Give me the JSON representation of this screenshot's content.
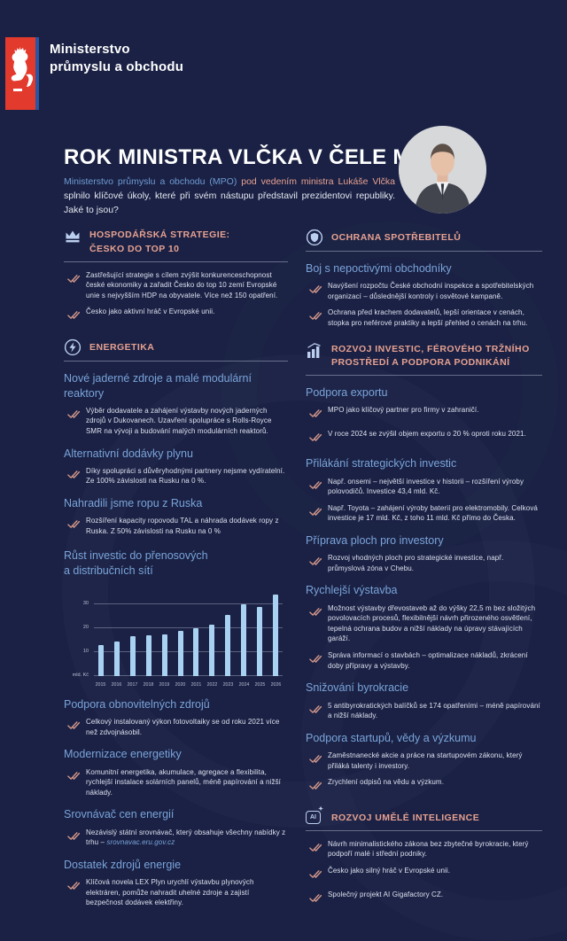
{
  "page": {
    "background": "#1a2144",
    "accent_red": "#e23a2d",
    "accent_blue_stripe": "#2b55a0",
    "accent_salmon": "#e7a191",
    "accent_light_blue": "#7aa4da",
    "bar_color": "#a9d2f2"
  },
  "brand": {
    "line1": "Ministerstvo",
    "line2": "průmyslu a obchodu",
    "emblem_icon": "czech-lion-icon"
  },
  "header": {
    "title": "ROK MINISTRA VLČKA V ČELE MPO",
    "intro_part1": "Ministerstvo průmyslu a obchodu (MPO)",
    "intro_part2": "pod vedením ministra Lukáše Vlčka",
    "intro_part3": "splnilo klíčové úkoly, které při svém nástupu představil prezidentovi republiky. Jaké to jsou?",
    "photo_icon": "minister-portrait"
  },
  "left": {
    "strategy": {
      "icon": "crown-icon",
      "title_line1": "HOSPODÁŘSKÁ STRATEGIE:",
      "title_line2": "ČESKO DO TOP 10",
      "bullets": [
        "Zastřešující strategie s cílem zvýšit konkurenceschopnost české ekonomiky a zařadit Česko do top 10 zemí Evropské unie s nejvyšším HDP na obyvatele. Více než 150 opatření.",
        "Česko jako aktivní hráč v Evropské unii."
      ]
    },
    "energy": {
      "icon": "energy-icon",
      "title": "ENERGETIKA",
      "subsections": [
        {
          "heading": "Nové jaderné zdroje a malé modulární reaktory",
          "bullets": [
            "Výběr dodavatele a zahájení výstavby nových jaderných zdrojů v Dukovanech. Uzavření spolupráce s Rolls-Royce SMR na vývoji a budování malých modulárních reaktorů."
          ]
        },
        {
          "heading": "Alternativní dodávky plynu",
          "bullets": [
            "Díky spolupráci s důvěryhodnými partnery nejsme vydíratelní. Ze 100% závislosti na Rusku na 0 %."
          ]
        },
        {
          "heading": "Nahradili jsme ropu z Ruska",
          "bullets": [
            "Rozšíření kapacity ropovodu TAL a náhrada dodávek ropy z Ruska. Z 50% závislosti na Rusku na 0 %"
          ]
        },
        {
          "heading_line1": "Růst investic do přenosových",
          "heading_line2": "a distribučních sítí"
        },
        {
          "heading": "Podpora obnovitelných zdrojů",
          "bullets": [
            "Celkový instalovaný výkon fotovoltaiky se od roku 2021 více než zdvojnásobil."
          ]
        },
        {
          "heading": "Modernizace energetiky",
          "bullets": [
            "Komunitní energetika, akumulace, agregace a flexibilita, rychlejší instalace solárních panelů, méně papírování a nižší náklady."
          ]
        },
        {
          "heading": "Srovnávač cen energií",
          "bullets": [
            "Nezávislý státní srovnávač, který obsahuje všechny nabídky z trhu – "
          ],
          "link": "srovnavac.eru.gov.cz"
        },
        {
          "heading": "Dostatek zdrojů energie",
          "bullets": [
            "Klíčová novela LEX Plyn urychlí výstavbu plynových elektráren, pomůže nahradit uhelné zdroje a zajistí bezpečnost dodávek elektřiny."
          ]
        }
      ]
    }
  },
  "right": {
    "consumer": {
      "icon": "shield-icon",
      "title": "OCHRANA SPOTŘEBITELŮ",
      "subsections": [
        {
          "heading": "Boj s nepoctivými obchodníky",
          "bullets": [
            "Navýšení rozpočtu České obchodní inspekce a spotřebitelských organizací – důslednější kontroly i osvětové kampaně.",
            "Ochrana před krachem dodavatelů, lepší orientace v cenách, stopka pro neférové praktiky a lepší přehled o cenách na trhu."
          ]
        }
      ]
    },
    "invest": {
      "icon": "bar-chart-icon",
      "title_line1": "ROZVOJ INVESTIC, FÉROVÉHO TRŽNÍHO",
      "title_line2": "PROSTŘEDÍ A PODPORA PODNIKÁNÍ",
      "subsections": [
        {
          "heading": "Podpora exportu",
          "bullets": [
            "MPO jako klíčový partner pro firmy v zahraničí.",
            "V roce 2024 se zvýšil objem exportu o 20 % oproti roku 2021."
          ]
        },
        {
          "heading": "Přilákání strategických investic",
          "bullets": [
            "Např. onsemi – největší investice v historii – rozšíření výroby polovodičů. Investice 43,4 mld. Kč.",
            "Např. Toyota – zahájení výroby baterií pro elektromobily. Celková investice je 17 mld. Kč, z toho 11 mld. Kč přímo do Česka."
          ]
        },
        {
          "heading": "Příprava ploch pro investory",
          "bullets": [
            "Rozvoj vhodných ploch pro strategické investice, např. průmyslová zóna v Chebu."
          ]
        },
        {
          "heading": "Rychlejší výstavba",
          "bullets": [
            "Možnost výstavby dřevostaveb až do výšky 22,5 m bez složitých povolovacích procesů, flexibilnější návrh přirozeného osvětlení, tepelná ochrana budov a nižší náklady na úpravy stávajících garáží.",
            "Správa informací o stavbách – optimalizace nákladů, zkrácení doby přípravy a výstavby."
          ]
        },
        {
          "heading": "Snižování byrokracie",
          "bullets": [
            "5 antibyrokratických balíčků se 174 opatřeními – méně papírování a nižší náklady."
          ]
        },
        {
          "heading": "Podpora startupů, vědy a výzkumu",
          "bullets": [
            "Zaměstnanecké akcie a práce na startupovém zákonu, který přiláká talenty i investory.",
            "Zrychlení odpisů na vědu a výzkum."
          ]
        }
      ]
    },
    "ai": {
      "icon": "ai-icon",
      "title": "ROZVOJ UMĚLÉ INTELIGENCE",
      "bullets": [
        "Návrh minimalistického zákona bez zbytečné byrokracie, který podpoří malé i střední podniky.",
        "Česko jako silný hráč v Evropské unii.",
        "Společný projekt AI Gigafactory CZ."
      ]
    }
  },
  "chart_data": {
    "type": "bar",
    "title": "Růst investic do přenosových a distribučních sítí",
    "categories": [
      "2015",
      "2016",
      "2017",
      "2018",
      "2019",
      "2020",
      "2021",
      "2022",
      "2023",
      "2024",
      "2025",
      "2026"
    ],
    "values": [
      13,
      14.5,
      16.5,
      17,
      17.5,
      19,
      20,
      21.5,
      25.5,
      30,
      29,
      34
    ],
    "xlabel": "",
    "ylabel": "mld. Kč",
    "yticks": [
      10,
      20,
      30
    ],
    "ylim": [
      0,
      36
    ],
    "grid": true,
    "legend": false,
    "bar_color": "#a9d2f2"
  }
}
